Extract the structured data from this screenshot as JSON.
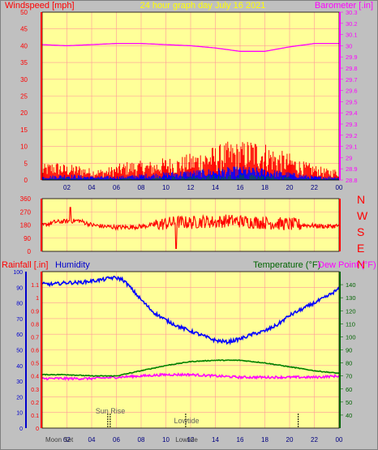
{
  "header": {
    "left_label": "Windspeed [mph]",
    "title": "24 hour graph day   July 16 2021",
    "right_label": "Barometer [.in]"
  },
  "bottom_header": {
    "rainfall_label": "Rainfall [.in]",
    "humidity_label": "Humidity",
    "temperature_label": "Temperature (°F)",
    "dewpoint_label": "Dew Point (°F)"
  },
  "direction_letters": [
    "N",
    "W",
    "S",
    "E",
    "N"
  ],
  "markers": {
    "sunrise": "Sun Rise",
    "lowtide_upper": "Lowtide",
    "lowtide_lower": "Lowtide",
    "moonset": "Moon Set"
  },
  "colors": {
    "background": "#c0c0c0",
    "plot_bg": "#ffff99",
    "grid": "#ff9999",
    "wind": "#ff0000",
    "wind_avg": "#0000ff",
    "wind_low": "#008000",
    "barometer": "#ff00ff",
    "direction": "#ff0000",
    "humidity": "#0000ff",
    "temperature": "#008000",
    "dewpoint": "#ff00ff",
    "title": "#ffff00",
    "red_text": "#ff0000",
    "blue_text": "#0000cc",
    "green_text": "#006400",
    "magenta_text": "#ff00ff"
  },
  "chart_data": [
    {
      "type": "line",
      "name": "wind-barometer",
      "x_ticks": [
        "02",
        "04",
        "06",
        "08",
        "10",
        "12",
        "14",
        "16",
        "18",
        "20",
        "22",
        "00"
      ],
      "xlim": [
        0,
        24
      ],
      "ylim": [
        0,
        50
      ],
      "y_ticks": [
        0,
        5,
        10,
        15,
        20,
        25,
        30,
        35,
        40,
        45,
        50
      ],
      "y2lim": [
        28.8,
        30.3
      ],
      "y2_ticks": [
        "28.8",
        "28.9",
        "29",
        "29.1",
        "29.2",
        "29.3",
        "29.4",
        "29.5",
        "29.6",
        "29.7",
        "29.8",
        "29.9",
        "30",
        "30.1",
        "30.2",
        "30.3"
      ],
      "wind_gust_envelope": {
        "x": [
          0,
          1,
          2,
          3,
          4,
          5,
          6,
          7,
          8,
          9,
          10,
          11,
          12,
          13,
          14,
          15,
          16,
          17,
          18,
          19,
          20,
          21,
          22,
          23,
          24
        ],
        "y": [
          4,
          5,
          4,
          4,
          3,
          3,
          4,
          5,
          5,
          5,
          6,
          6,
          7,
          8,
          9,
          10,
          10,
          11,
          10,
          8,
          7,
          5,
          4,
          3,
          3
        ]
      },
      "wind_avg_envelope": {
        "x": [
          0,
          2,
          4,
          6,
          8,
          10,
          12,
          14,
          16,
          18,
          20,
          22,
          24
        ],
        "y": [
          1,
          1.5,
          1,
          1,
          1.5,
          2,
          2.5,
          3,
          3.5,
          3,
          2,
          1,
          1
        ]
      },
      "barometer": {
        "x": [
          0,
          2,
          4,
          6,
          8,
          10,
          12,
          14,
          16,
          18,
          20,
          22,
          24
        ],
        "y": [
          30.01,
          30.0,
          30.01,
          30.02,
          30.02,
          30.01,
          30.0,
          29.98,
          29.95,
          29.95,
          29.99,
          30.02,
          30.02
        ]
      }
    },
    {
      "type": "line",
      "name": "wind-direction",
      "xlim": [
        0,
        24
      ],
      "ylim": [
        0,
        360
      ],
      "y_ticks": [
        0,
        90,
        180,
        270,
        360
      ],
      "series": {
        "x": [
          0,
          1,
          2,
          3,
          4,
          5,
          6,
          7,
          8,
          9,
          10,
          11,
          12,
          13,
          14,
          15,
          16,
          17,
          18,
          19,
          20,
          21,
          22,
          23,
          24
        ],
        "y": [
          175,
          200,
          205,
          210,
          180,
          170,
          165,
          165,
          170,
          180,
          190,
          200,
          195,
          205,
          200,
          210,
          205,
          200,
          195,
          190,
          185,
          180,
          175,
          170,
          175
        ]
      }
    },
    {
      "type": "line",
      "name": "humidity-temperature",
      "x_ticks": [
        "Moon Set",
        "02",
        "04",
        "06",
        "08",
        "10",
        "12",
        "14",
        "16",
        "18",
        "20",
        "22",
        "00"
      ],
      "xlim": [
        0,
        24
      ],
      "rain_ylim": [
        0,
        1.2
      ],
      "rain_ticks": [
        "0",
        "0.1",
        "0.2",
        "0.3",
        "0.4",
        "0.5",
        "0.6",
        "0.7",
        "0.8",
        "0.9",
        "1",
        "1.1"
      ],
      "humidity_ylim": [
        0,
        100
      ],
      "humidity_ticks": [
        0,
        10,
        20,
        30,
        40,
        50,
        60,
        70,
        80,
        90,
        100
      ],
      "temp_ylim": [
        30,
        150
      ],
      "temp_ticks": [
        40,
        50,
        60,
        70,
        80,
        90,
        100,
        110,
        120,
        130,
        140
      ],
      "humidity": {
        "x": [
          0,
          1,
          2,
          3,
          4,
          5,
          5.5,
          6,
          6.5,
          7,
          8,
          9,
          10,
          11,
          12,
          13,
          14,
          15,
          16,
          17,
          18,
          19,
          20,
          21,
          22,
          23,
          24
        ],
        "y": [
          92,
          92,
          93,
          93,
          94,
          95,
          96,
          96,
          95,
          91,
          82,
          74,
          69,
          65,
          62,
          59,
          56,
          55,
          57,
          60,
          62,
          66,
          72,
          76,
          80,
          84,
          89
        ]
      },
      "temperature": {
        "x": [
          0,
          2,
          4,
          6,
          8,
          10,
          12,
          14,
          16,
          18,
          20,
          22,
          24
        ],
        "y": [
          71,
          71,
          70,
          70,
          74,
          78,
          81,
          82,
          82,
          80,
          77,
          74,
          72
        ]
      },
      "dewpoint": {
        "x": [
          0,
          2,
          4,
          6,
          8,
          10,
          12,
          14,
          16,
          18,
          20,
          22,
          24
        ],
        "y": [
          68,
          68,
          68,
          69,
          70,
          71,
          71,
          70,
          69,
          69,
          69,
          69,
          70
        ]
      },
      "sunrise_hour": 5.5,
      "lowtide_hour": 11.6,
      "moonset_hour": 0,
      "event_hour": 20.7
    }
  ]
}
